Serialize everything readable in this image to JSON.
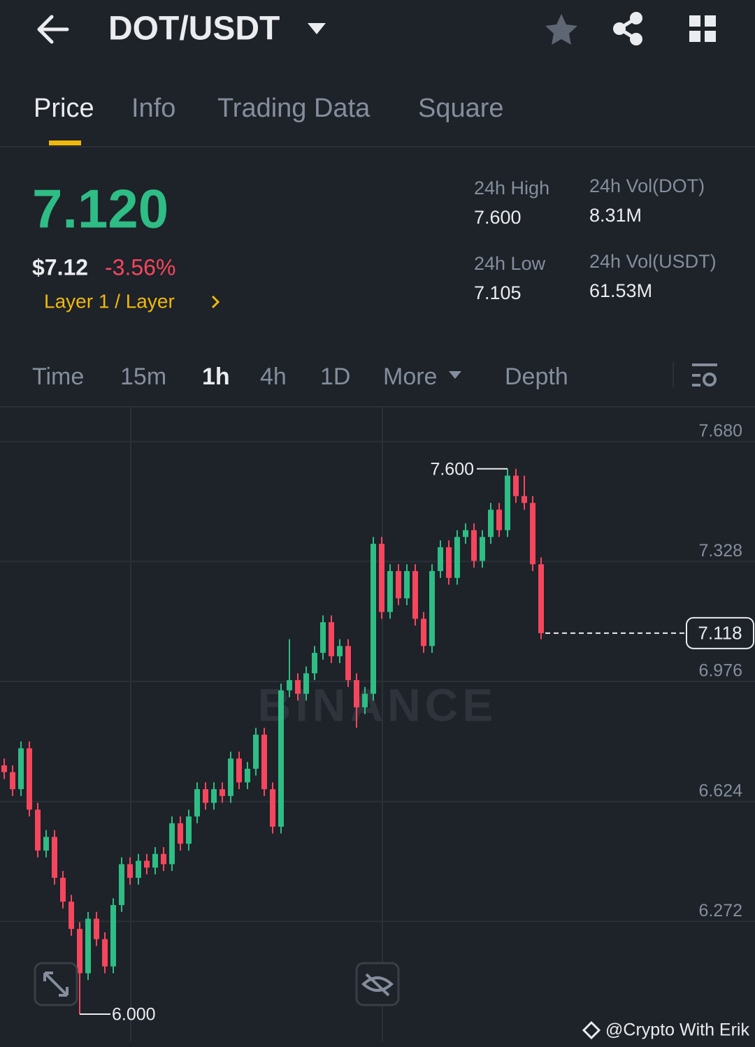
{
  "header": {
    "pair": "DOT/USDT"
  },
  "tabs": [
    "Price",
    "Info",
    "Trading Data",
    "Square"
  ],
  "ticker": {
    "last": "7.120",
    "usd": "$7.12",
    "change": "-3.56%",
    "sector": "Layer 1 / Layer",
    "stats": [
      {
        "label": "24h High",
        "value": "7.600"
      },
      {
        "label": "24h Vol(DOT)",
        "value": "8.31M"
      },
      {
        "label": "24h Low",
        "value": "7.105"
      },
      {
        "label": "24h Vol(USDT)",
        "value": "61.53M"
      }
    ]
  },
  "intervals": [
    "Time",
    "15m",
    "1h",
    "4h",
    "1D",
    "More",
    "Depth"
  ],
  "watermark": "BINANCE",
  "credit": "@Crypto With Erik",
  "chart_data": {
    "type": "candlestick",
    "up_color": "#2ebd85",
    "down_color": "#f6465d",
    "ylim": [
      5.92,
      7.78
    ],
    "yticks": [
      {
        "value": 7.68,
        "label": "7.680"
      },
      7.328,
      6.976,
      6.624,
      6.272
    ],
    "grid": true,
    "high_label": {
      "value": 7.6,
      "label": "7.600"
    },
    "low_label": {
      "value": 6.0,
      "label": "6.000"
    },
    "last_price": {
      "value": 7.118,
      "label": "7.118"
    },
    "open": [
      6.73,
      6.71,
      6.66,
      6.78,
      6.6,
      6.48,
      6.52,
      6.4,
      6.33,
      6.25,
      6.12,
      6.28,
      6.22,
      6.14,
      6.32,
      6.44,
      6.4,
      6.45,
      6.43,
      6.47,
      6.44,
      6.56,
      6.5,
      6.58,
      6.66,
      6.62,
      6.66,
      6.64,
      6.75,
      6.68,
      6.72,
      6.82,
      6.66,
      6.55,
      6.95,
      6.98,
      6.94,
      7.0,
      7.06,
      7.15,
      7.05,
      7.08,
      6.98,
      6.9,
      6.94,
      7.38,
      7.18,
      7.3,
      7.22,
      7.3,
      7.16,
      7.08,
      7.3,
      7.37,
      7.28,
      7.4,
      7.42,
      7.33,
      7.4,
      7.48,
      7.42,
      7.58,
      7.52,
      7.5,
      7.32
    ],
    "high": [
      6.75,
      6.73,
      6.8,
      6.8,
      6.62,
      6.54,
      6.54,
      6.42,
      6.35,
      6.27,
      6.3,
      6.3,
      6.24,
      6.34,
      6.46,
      6.46,
      6.47,
      6.47,
      6.49,
      6.49,
      6.58,
      6.58,
      6.6,
      6.68,
      6.68,
      6.68,
      6.68,
      6.77,
      6.77,
      6.74,
      6.84,
      6.84,
      6.68,
      6.97,
      7.1,
      7.0,
      7.02,
      7.08,
      7.17,
      7.17,
      7.1,
      7.1,
      7.0,
      6.96,
      7.4,
      7.4,
      7.32,
      7.32,
      7.32,
      7.32,
      7.18,
      7.32,
      7.39,
      7.39,
      7.42,
      7.44,
      7.44,
      7.42,
      7.5,
      7.5,
      7.6,
      7.6,
      7.58,
      7.52,
      7.34
    ],
    "low": [
      6.69,
      6.64,
      6.64,
      6.58,
      6.46,
      6.46,
      6.38,
      6.31,
      6.23,
      6.0,
      6.1,
      6.2,
      6.12,
      6.12,
      6.3,
      6.38,
      6.38,
      6.41,
      6.41,
      6.42,
      6.42,
      6.48,
      6.48,
      6.56,
      6.6,
      6.6,
      6.62,
      6.62,
      6.66,
      6.66,
      6.7,
      6.64,
      6.53,
      6.53,
      6.93,
      6.92,
      6.92,
      6.98,
      7.04,
      7.03,
      7.03,
      6.96,
      6.84,
      6.88,
      6.92,
      7.16,
      7.16,
      7.2,
      7.2,
      7.14,
      7.06,
      7.06,
      7.28,
      7.26,
      7.26,
      7.38,
      7.31,
      7.31,
      7.38,
      7.4,
      7.4,
      7.5,
      7.48,
      7.3,
      7.1
    ],
    "close": [
      6.71,
      6.66,
      6.78,
      6.6,
      6.48,
      6.52,
      6.4,
      6.33,
      6.25,
      6.12,
      6.28,
      6.22,
      6.14,
      6.32,
      6.44,
      6.4,
      6.45,
      6.43,
      6.47,
      6.44,
      6.56,
      6.5,
      6.58,
      6.66,
      6.62,
      6.66,
      6.64,
      6.75,
      6.68,
      6.72,
      6.82,
      6.66,
      6.55,
      6.95,
      6.98,
      6.94,
      7.0,
      7.06,
      7.15,
      7.05,
      7.08,
      6.98,
      6.9,
      6.94,
      7.38,
      7.18,
      7.3,
      7.22,
      7.3,
      7.16,
      7.08,
      7.3,
      7.37,
      7.28,
      7.4,
      7.42,
      7.33,
      7.4,
      7.48,
      7.42,
      7.58,
      7.52,
      7.5,
      7.32,
      7.118
    ]
  }
}
